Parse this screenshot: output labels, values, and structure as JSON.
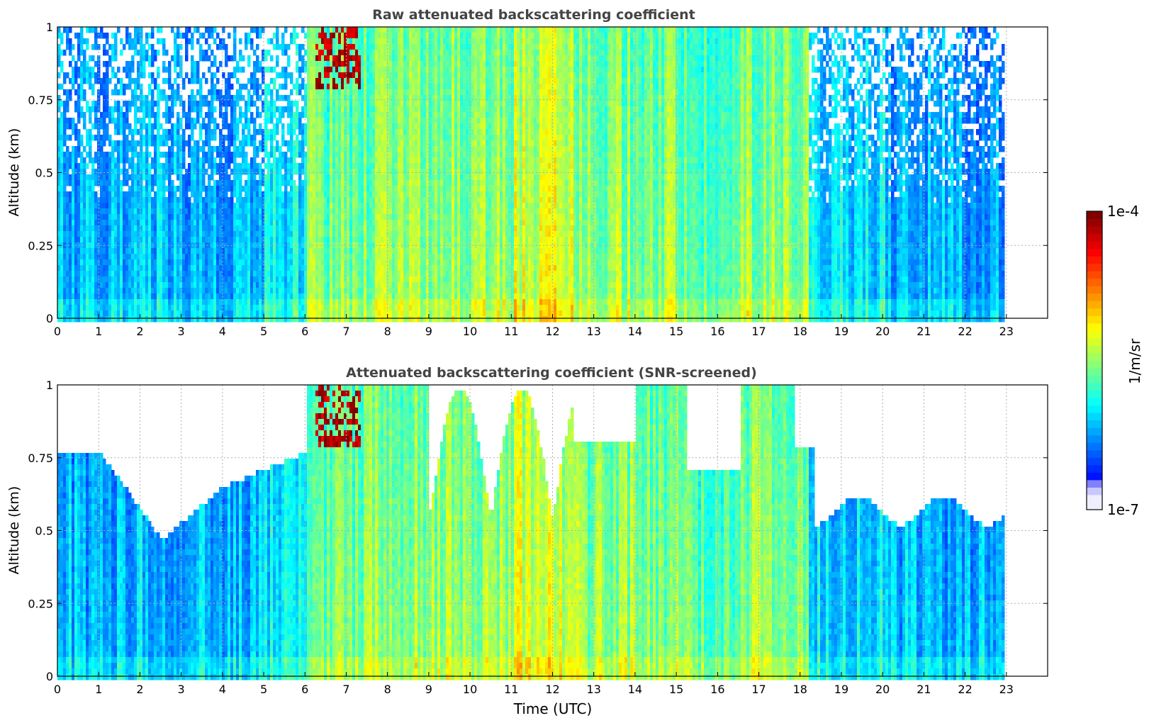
{
  "chart_data": [
    {
      "type": "heatmap",
      "title": "Raw attenuated backscattering coefficient",
      "ylabel": "Altitude (km)",
      "xlabel": "",
      "xlim": [
        0,
        24
      ],
      "ylim": [
        0,
        1
      ],
      "x_ticks": [
        "0",
        "1",
        "2",
        "3",
        "4",
        "5",
        "6",
        "7",
        "8",
        "9",
        "10",
        "11",
        "12",
        "13",
        "14",
        "15",
        "16",
        "17",
        "18",
        "19",
        "20",
        "21",
        "22",
        "23"
      ],
      "y_ticks": [
        "0",
        "0.25",
        "0.5",
        "0.75",
        "1"
      ],
      "data_end_hour": 23,
      "grid": true,
      "colorscale": "jet",
      "log_scale": true,
      "screened": false
    },
    {
      "type": "heatmap",
      "title": "Attenuated backscattering coefficient (SNR-screened)",
      "ylabel": "Altitude (km)",
      "xlabel": "Time (UTC)",
      "xlim": [
        0,
        24
      ],
      "ylim": [
        0,
        1
      ],
      "x_ticks": [
        "0",
        "1",
        "2",
        "3",
        "4",
        "5",
        "6",
        "7",
        "8",
        "9",
        "10",
        "11",
        "12",
        "13",
        "14",
        "15",
        "16",
        "17",
        "18",
        "19",
        "20",
        "21",
        "22",
        "23"
      ],
      "y_ticks": [
        "0",
        "0.25",
        "0.5",
        "0.75",
        "1"
      ],
      "data_end_hour": 23,
      "grid": true,
      "colorscale": "jet",
      "log_scale": true,
      "screened": true
    }
  ],
  "colorbar": {
    "label": "1/m/sr",
    "max_label": "1e-4",
    "min_label": "1e-7",
    "position": "right",
    "colors": [
      "#eeeeff",
      "#c8c8ff",
      "#8080ff",
      "#0000ff",
      "#0040ff",
      "#0080ff",
      "#00c0ff",
      "#00ffff",
      "#40ffc0",
      "#80ff80",
      "#c0ff40",
      "#ffff00",
      "#ffc000",
      "#ff8000",
      "#ff4000",
      "#ff0000",
      "#c00000",
      "#800000"
    ]
  }
}
